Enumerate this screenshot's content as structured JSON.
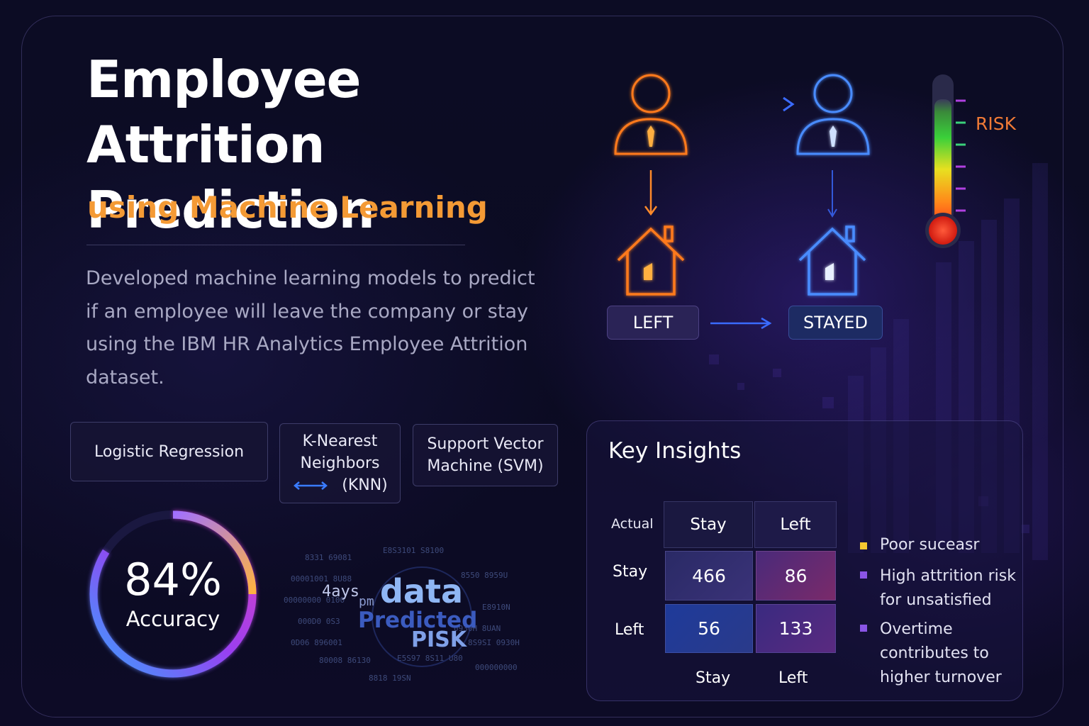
{
  "title": "Employee Attrition Prediction",
  "subtitle": "using Machine Learning",
  "description": "Developed machine learning models to predict if an employee will leave the company or stay using the IBM HR Analytics Employee Attrition dataset.",
  "models": {
    "logistic_regression": "Logistic Regression",
    "knn_line1": "K-Nearest",
    "knn_line2": "Neighbors",
    "knn_line3": "(KNN)",
    "svm_line1": "Support Vector",
    "svm_line2": "Machine (SVM)"
  },
  "accuracy": {
    "value": "84%",
    "label": "Accuracy",
    "fraction": 0.84
  },
  "data_cloud": {
    "word_data": "data",
    "word_predicted": "Predicted",
    "word_risk": "PISK",
    "word_4ays": "4ays",
    "word_pm": "pm"
  },
  "flow": {
    "left_label": "LEFT",
    "stayed_label": "STAYED"
  },
  "risk_label": "RISK",
  "insights": {
    "title": "Key Insights",
    "actual_label": "Actual",
    "columns": [
      "Stay",
      "Left"
    ],
    "rows": [
      "Stay",
      "Left"
    ],
    "bottom_labels": [
      "Stay",
      "Left"
    ],
    "matrix": [
      [
        466,
        86
      ],
      [
        56,
        133
      ]
    ],
    "cells": [
      "466",
      "86",
      "56",
      "133"
    ],
    "bullets": [
      {
        "text": "Poor suceasr",
        "color": "#f5c830"
      },
      {
        "text": "High attrition risk for unsatisfied",
        "color": "#8a55e6"
      },
      {
        "text": "Overtime contributes to higher turnover",
        "color": "#8a55e6"
      }
    ]
  },
  "colors": {
    "accent_orange": "#f49a35",
    "person_orange": "#ff7a1a",
    "person_blue": "#4a8cff",
    "gauge_start": "#3aa0ff",
    "gauge_mid": "#c040e0",
    "gauge_end": "#ffb340"
  }
}
